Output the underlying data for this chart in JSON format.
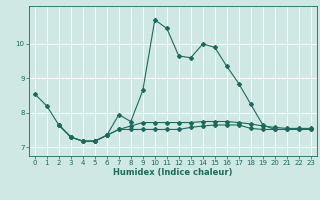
{
  "xlabel": "Humidex (Indice chaleur)",
  "background_color": "#cfe8e4",
  "grid_color": "#ffffff",
  "line_color": "#1a6b5e",
  "xlim": [
    -0.5,
    23.5
  ],
  "ylim": [
    6.75,
    11.1
  ],
  "yticks": [
    7,
    8,
    9,
    10
  ],
  "xticks": [
    0,
    1,
    2,
    3,
    4,
    5,
    6,
    7,
    8,
    9,
    10,
    11,
    12,
    13,
    14,
    15,
    16,
    17,
    18,
    19,
    20,
    21,
    22,
    23
  ],
  "series1_x": [
    0,
    1,
    2,
    3,
    4,
    5,
    6,
    7,
    8,
    9,
    10,
    11,
    12,
    13,
    14,
    15,
    16,
    17,
    18,
    19,
    20,
    21,
    22,
    23
  ],
  "series1_y": [
    8.55,
    8.2,
    7.65,
    7.3,
    7.18,
    7.18,
    7.35,
    7.95,
    7.75,
    8.65,
    10.7,
    10.45,
    9.65,
    9.6,
    10.0,
    9.9,
    9.35,
    8.85,
    8.25,
    7.65,
    7.52,
    7.52,
    7.52,
    7.52
  ],
  "series2_x": [
    2,
    3,
    4,
    5,
    6,
    7,
    8,
    9,
    10,
    11,
    12,
    13,
    14,
    15,
    16,
    17,
    18,
    19,
    20,
    21,
    22,
    23
  ],
  "series2_y": [
    7.65,
    7.3,
    7.18,
    7.18,
    7.35,
    7.52,
    7.52,
    7.52,
    7.52,
    7.52,
    7.52,
    7.58,
    7.62,
    7.65,
    7.65,
    7.65,
    7.55,
    7.52,
    7.52,
    7.52,
    7.52,
    7.52
  ],
  "series3_x": [
    2,
    3,
    4,
    5,
    6,
    7,
    8,
    9,
    10,
    11,
    12,
    13,
    14,
    15,
    16,
    17,
    18,
    19,
    20,
    21,
    22,
    23
  ],
  "series3_y": [
    7.65,
    7.3,
    7.18,
    7.18,
    7.35,
    7.52,
    7.62,
    7.72,
    7.72,
    7.72,
    7.72,
    7.72,
    7.75,
    7.75,
    7.75,
    7.72,
    7.68,
    7.62,
    7.58,
    7.55,
    7.55,
    7.55
  ],
  "xlabel_fontsize": 6,
  "tick_fontsize": 5,
  "linewidth": 0.8,
  "markersize": 2.0
}
